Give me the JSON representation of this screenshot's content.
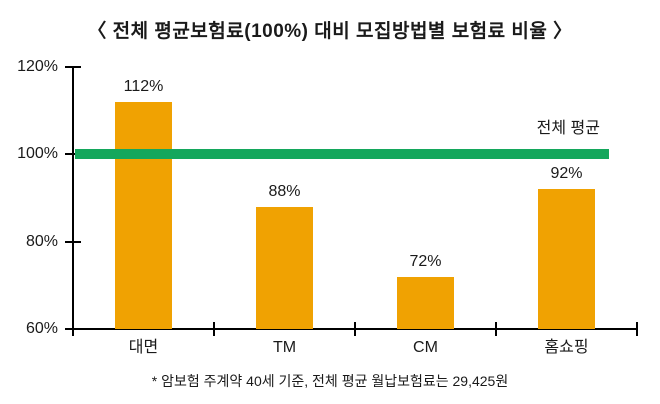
{
  "title": "〈 전체 평균보험료(100%) 대비 모집방법별 보험료 비율 〉",
  "footnote": "* 암보험 주계약 40세 기준, 전체 평균 월납보험료는 29,425원",
  "chart_data": {
    "type": "bar",
    "categories": [
      "대면",
      "TM",
      "CM",
      "홈쇼핑"
    ],
    "values": [
      112,
      88,
      72,
      92
    ],
    "value_labels": [
      "112%",
      "88%",
      "72%",
      "92%"
    ],
    "ylim": [
      60,
      120
    ],
    "yticks": [
      60,
      80,
      100,
      120
    ],
    "ytick_labels": [
      "60%",
      "80%",
      "100%",
      "120%"
    ],
    "reference_line": {
      "value": 100,
      "label": "전체 평균",
      "color": "#14A75C"
    },
    "bar_color": "#F0A202",
    "axis_color": "#000000",
    "text_color": "#1a1a1a",
    "background_color": "#FFFFFF",
    "grid": false,
    "legend": false
  }
}
